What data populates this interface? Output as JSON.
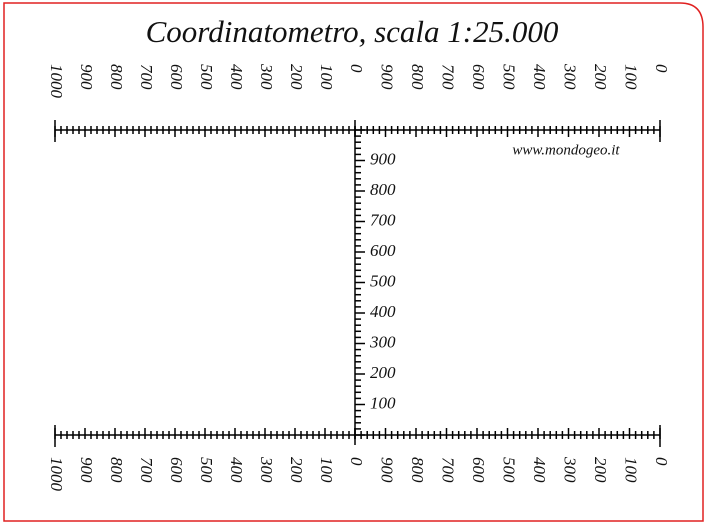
{
  "title": "Coordinatometro, scala 1:25.000",
  "website": "www.mondogeo.it",
  "top_scale": {
    "left": [
      "1000",
      "900",
      "800",
      "700",
      "600",
      "500",
      "400",
      "300",
      "200",
      "100",
      "0"
    ],
    "right": [
      "900",
      "800",
      "700",
      "600",
      "500",
      "400",
      "300",
      "200",
      "100",
      "0"
    ]
  },
  "vertical_scale": [
    "900",
    "800",
    "700",
    "600",
    "500",
    "400",
    "300",
    "200",
    "100"
  ],
  "bottom_scale": {
    "left": [
      "1000",
      "900",
      "800",
      "700",
      "600",
      "500",
      "400",
      "300",
      "200",
      "100",
      "0"
    ],
    "right": [
      "900",
      "800",
      "700",
      "600",
      "500",
      "400",
      "300",
      "200",
      "100",
      "0"
    ]
  }
}
